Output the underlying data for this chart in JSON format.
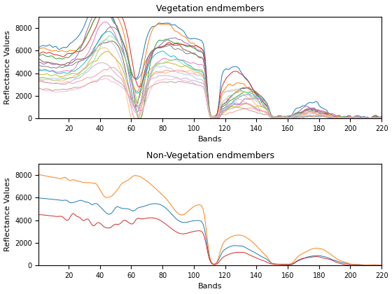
{
  "title1": "Vegetation endmembers",
  "title2": "Non-Vegetation endmembers",
  "xlabel": "Bands",
  "ylabel": "Reflectance Values",
  "xlim": [
    1,
    220
  ],
  "ylim": [
    0,
    9000
  ],
  "n_bands": 220,
  "veg_colors": [
    "#1f77b4",
    "#ff7f0e",
    "#2ca02c",
    "#d62728",
    "#9467bd",
    "#8c564b",
    "#e377c2",
    "#7f7f7f",
    "#bcbd22",
    "#17becf",
    "#aec7e8",
    "#ffbb78",
    "#98df8a",
    "#ff9896",
    "#c5b0d5",
    "#c49c94",
    "#f7b6d2"
  ],
  "nonveg_colors": [
    "#1f77b4",
    "#ff7f0e",
    "#d62728"
  ]
}
